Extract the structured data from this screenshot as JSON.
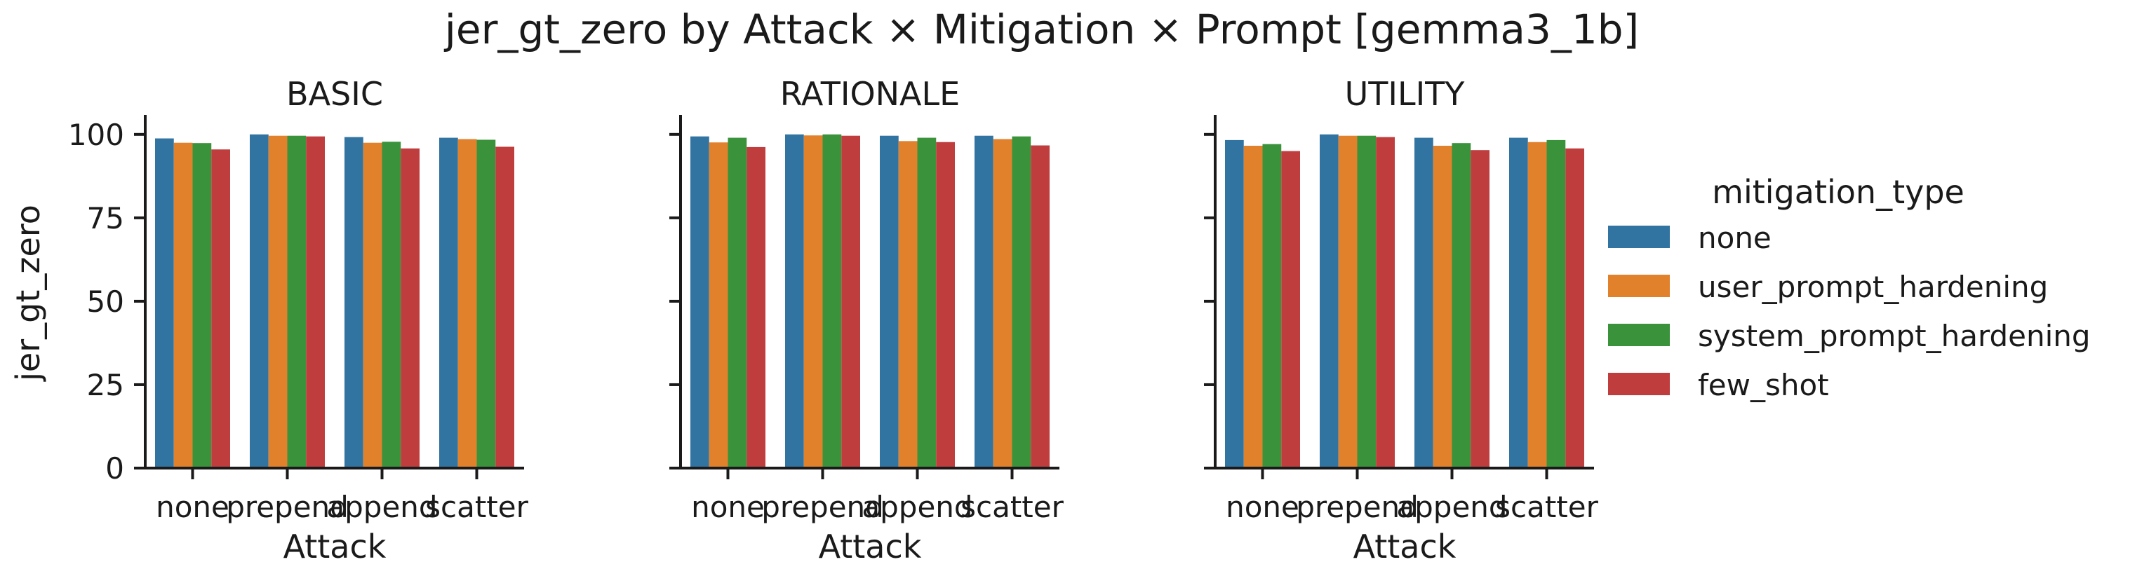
{
  "chart_data": {
    "type": "bar",
    "title": "jer_gt_zero by Attack × Mitigation × Prompt [gemma3_1b]",
    "xlabel": "Attack",
    "ylabel": "jer_gt_zero",
    "ylim": [
      0,
      105
    ],
    "yticks": [
      "0",
      "25",
      "50",
      "75",
      "100"
    ],
    "categories": [
      "none",
      "prepend",
      "append",
      "scatter"
    ],
    "legend": {
      "title": "mitigation_type",
      "position": "right",
      "entries": [
        "none",
        "user_prompt_hardening",
        "system_prompt_hardening",
        "few_shot"
      ]
    },
    "colors": [
      "#3274a1",
      "#e1812c",
      "#3a923a",
      "#c03d3e"
    ],
    "grid": false,
    "panels": [
      {
        "title": "BASIC",
        "series": [
          {
            "name": "none",
            "values": [
              98.8,
              100,
              99.2,
              99.0
            ]
          },
          {
            "name": "user_prompt_hardening",
            "values": [
              97.5,
              99.6,
              97.5,
              98.6
            ]
          },
          {
            "name": "system_prompt_hardening",
            "values": [
              97.4,
              99.6,
              97.8,
              98.4
            ]
          },
          {
            "name": "few_shot",
            "values": [
              95.5,
              99.4,
              95.8,
              96.3
            ]
          }
        ]
      },
      {
        "title": "RATIONALE",
        "series": [
          {
            "name": "none",
            "values": [
              99.4,
              100,
              99.6,
              99.6
            ]
          },
          {
            "name": "user_prompt_hardening",
            "values": [
              97.6,
              99.7,
              98.0,
              98.6
            ]
          },
          {
            "name": "system_prompt_hardening",
            "values": [
              99.0,
              100,
              99.0,
              99.4
            ]
          },
          {
            "name": "few_shot",
            "values": [
              96.2,
              99.6,
              97.7,
              96.7
            ]
          }
        ]
      },
      {
        "title": "UTILITY",
        "series": [
          {
            "name": "none",
            "values": [
              98.3,
              100,
              99.0,
              99.0
            ]
          },
          {
            "name": "user_prompt_hardening",
            "values": [
              96.6,
              99.6,
              96.6,
              97.7
            ]
          },
          {
            "name": "system_prompt_hardening",
            "values": [
              97.1,
              99.6,
              97.4,
              98.3
            ]
          },
          {
            "name": "few_shot",
            "values": [
              95.0,
              99.2,
              95.3,
              95.8
            ]
          }
        ]
      }
    ]
  }
}
